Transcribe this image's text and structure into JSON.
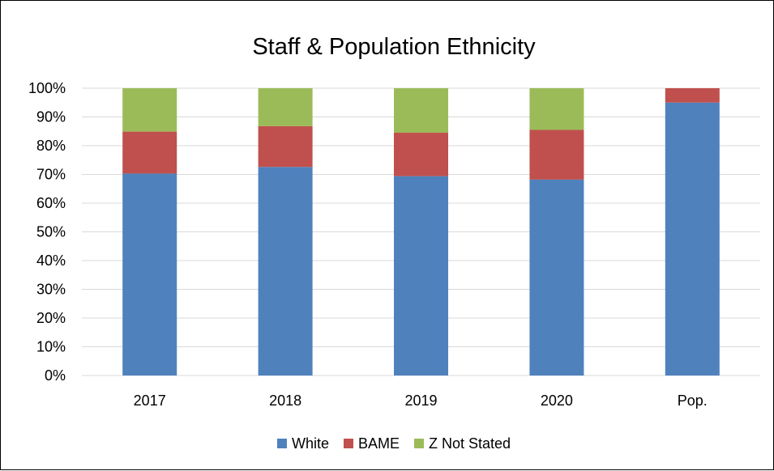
{
  "chart_data": {
    "type": "bar",
    "stacked": true,
    "title": "Staff & Population Ethnicity",
    "xlabel": "",
    "ylabel": "",
    "categories": [
      "2017",
      "2018",
      "2019",
      "2020",
      "Pop."
    ],
    "y_ticks": [
      "0%",
      "10%",
      "20%",
      "30%",
      "40%",
      "50%",
      "60%",
      "70%",
      "80%",
      "90%",
      "100%"
    ],
    "ylim": [
      0,
      100
    ],
    "grid": true,
    "legend_position": "bottom",
    "series": [
      {
        "name": "White",
        "color": "#4f81bd",
        "values": [
          70.3,
          72.6,
          69.4,
          68.2,
          95.0
        ]
      },
      {
        "name": "BAME",
        "color": "#c0504d",
        "values": [
          14.6,
          14.2,
          15.1,
          17.3,
          5.0
        ]
      },
      {
        "name": "Z Not Stated",
        "color": "#9bbb59",
        "values": [
          15.1,
          13.2,
          15.5,
          14.5,
          0.0
        ]
      }
    ]
  }
}
